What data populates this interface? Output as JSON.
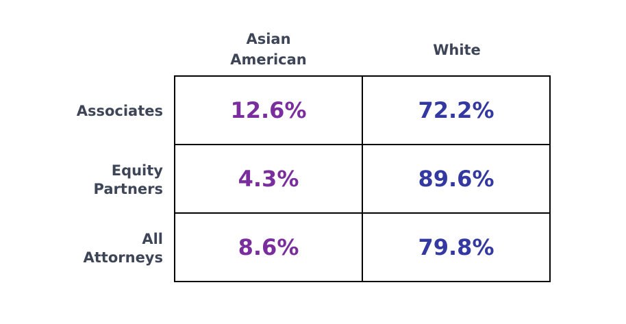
{
  "chart_data": {
    "type": "table",
    "columns": [
      "Asian American",
      "White"
    ],
    "rows": [
      {
        "label": "Associates",
        "values": [
          "12.6%",
          "72.2%"
        ]
      },
      {
        "label": "Equity Partners",
        "values": [
          "4.3%",
          "89.6%"
        ]
      },
      {
        "label": "All Attorneys",
        "values": [
          "8.6%",
          "79.8%"
        ]
      }
    ]
  },
  "colors": {
    "asian_american_value": "#7a2d9d",
    "white_value": "#3339a0",
    "label_text": "#3d4557",
    "border": "#000000",
    "background": "#ffffff"
  }
}
